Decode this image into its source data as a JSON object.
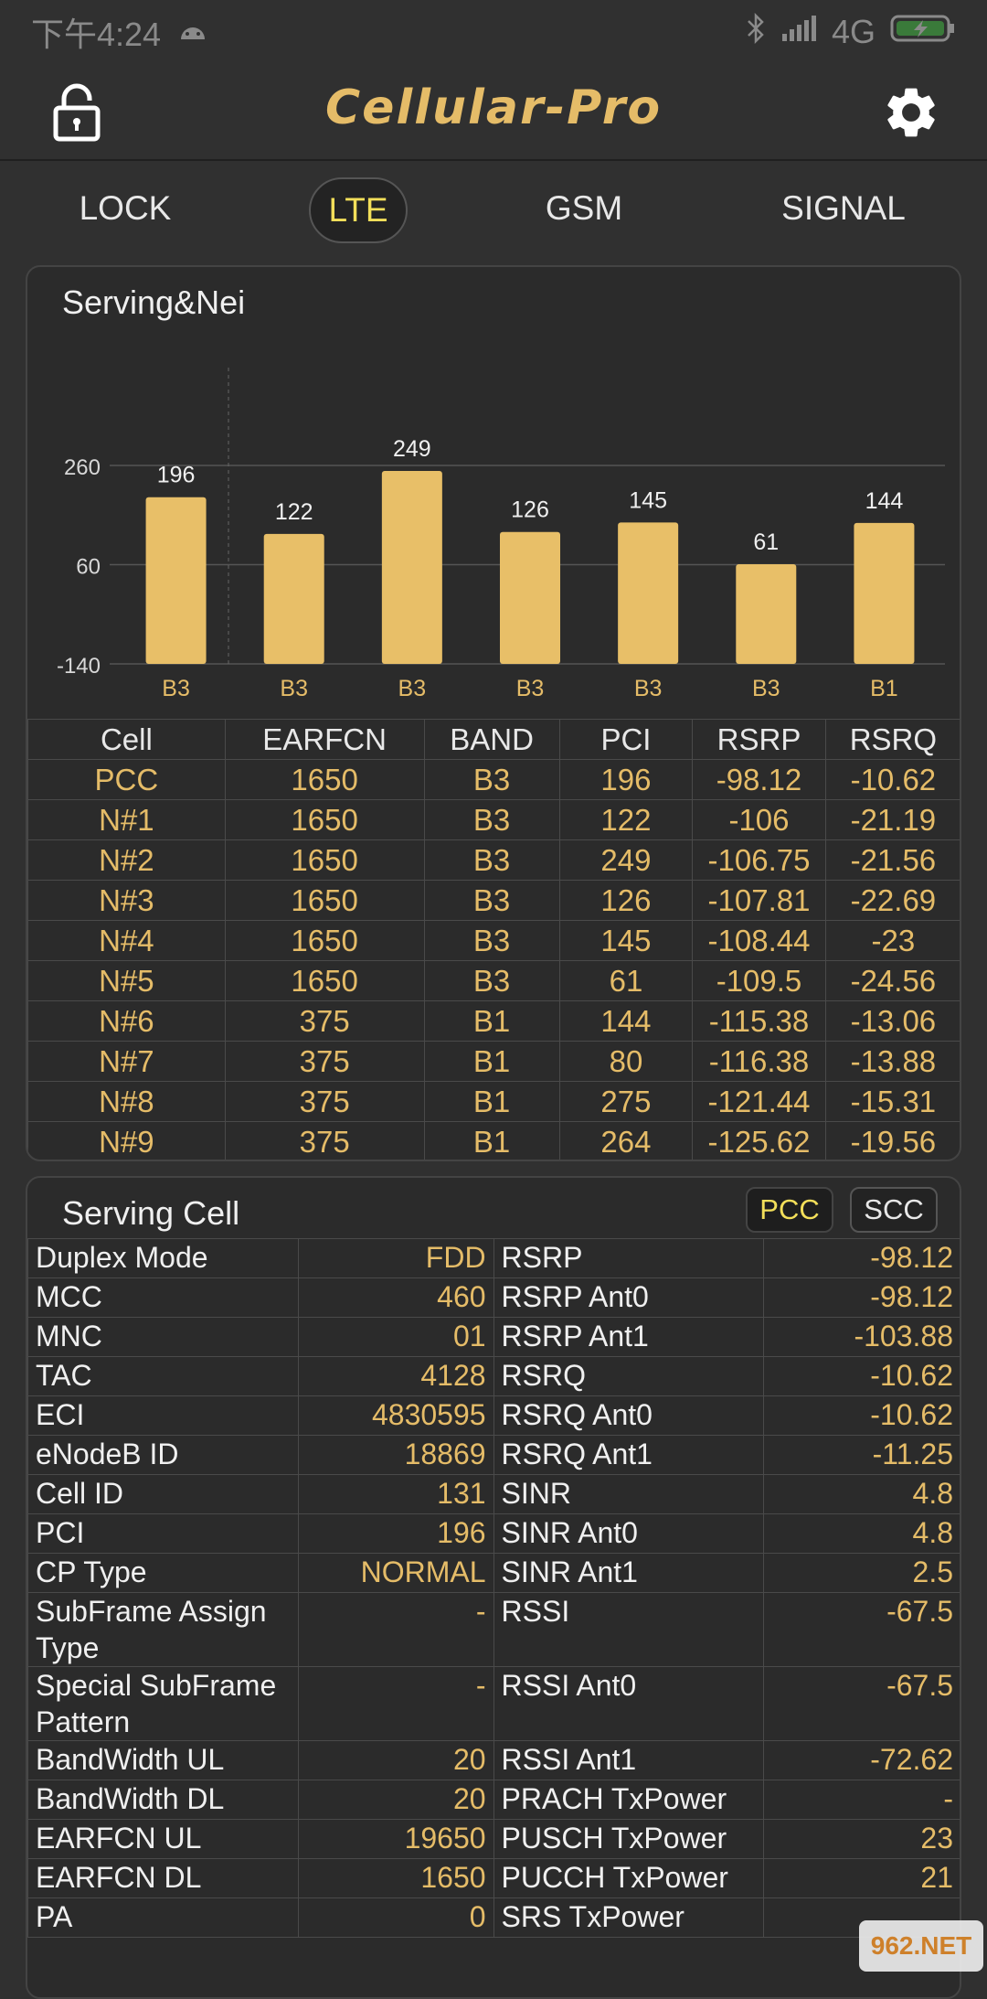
{
  "status_bar": {
    "time": "下午4:24",
    "network": "4G"
  },
  "app": {
    "title": "Cellular-Pro"
  },
  "tabs": [
    {
      "label": "LOCK"
    },
    {
      "label": "LTE"
    },
    {
      "label": "GSM"
    },
    {
      "label": "SIGNAL"
    }
  ],
  "serving_nei": {
    "title": "Serving&Nei",
    "columns": [
      "Cell",
      "EARFCN",
      "BAND",
      "PCI",
      "RSRP",
      "RSRQ"
    ],
    "rows": [
      [
        "PCC",
        "1650",
        "B3",
        "196",
        "-98.12",
        "-10.62"
      ],
      [
        "N#1",
        "1650",
        "B3",
        "122",
        "-106",
        "-21.19"
      ],
      [
        "N#2",
        "1650",
        "B3",
        "249",
        "-106.75",
        "-21.56"
      ],
      [
        "N#3",
        "1650",
        "B3",
        "126",
        "-107.81",
        "-22.69"
      ],
      [
        "N#4",
        "1650",
        "B3",
        "145",
        "-108.44",
        "-23"
      ],
      [
        "N#5",
        "1650",
        "B3",
        "61",
        "-109.5",
        "-24.56"
      ],
      [
        "N#6",
        "375",
        "B1",
        "144",
        "-115.38",
        "-13.06"
      ],
      [
        "N#7",
        "375",
        "B1",
        "80",
        "-116.38",
        "-13.88"
      ],
      [
        "N#8",
        "375",
        "B1",
        "275",
        "-121.44",
        "-15.31"
      ],
      [
        "N#9",
        "375",
        "B1",
        "264",
        "-125.62",
        "-19.56"
      ]
    ]
  },
  "chart_data": {
    "type": "bar",
    "categories": [
      "B3",
      "B3",
      "B3",
      "B3",
      "B3",
      "B3",
      "B1"
    ],
    "values": [
      196,
      122,
      249,
      126,
      145,
      61,
      144
    ],
    "ytick_labels": [
      "260",
      "60",
      "-140"
    ],
    "ylim": [
      -140,
      260
    ],
    "title": "",
    "xlabel": "",
    "ylabel": "",
    "grid": true,
    "bar_color": "#e8bf68"
  },
  "serving_cell": {
    "title": "Serving Cell",
    "pcc_label": "PCC",
    "scc_label": "SCC",
    "rows": [
      {
        "k1": "Duplex Mode",
        "v1": "FDD",
        "k2": "RSRP",
        "v2": "-98.12"
      },
      {
        "k1": "MCC",
        "v1": "460",
        "k2": "RSRP Ant0",
        "v2": "-98.12"
      },
      {
        "k1": "MNC",
        "v1": "01",
        "k2": "RSRP Ant1",
        "v2": "-103.88"
      },
      {
        "k1": "TAC",
        "v1": "4128",
        "k2": "RSRQ",
        "v2": "-10.62"
      },
      {
        "k1": "ECI",
        "v1": "4830595",
        "k2": "RSRQ Ant0",
        "v2": "-10.62"
      },
      {
        "k1": "eNodeB ID",
        "v1": "18869",
        "k2": "RSRQ Ant1",
        "v2": "-11.25"
      },
      {
        "k1": "Cell ID",
        "v1": "131",
        "k2": "SINR",
        "v2": "4.8"
      },
      {
        "k1": "PCI",
        "v1": "196",
        "k2": "SINR Ant0",
        "v2": "4.8"
      },
      {
        "k1": "CP Type",
        "v1": "NORMAL",
        "k2": "SINR Ant1",
        "v2": "2.5"
      },
      {
        "k1": "SubFrame Assign Type",
        "v1": "-",
        "k2": "RSSI",
        "v2": "-67.5"
      },
      {
        "k1": "Special SubFrame Pattern",
        "v1": "-",
        "k2": "RSSI Ant0",
        "v2": "-67.5"
      },
      {
        "k1": "BandWidth UL",
        "v1": "20",
        "k2": "RSSI Ant1",
        "v2": "-72.62"
      },
      {
        "k1": "BandWidth DL",
        "v1": "20",
        "k2": "PRACH TxPower",
        "v2": "-"
      },
      {
        "k1": "EARFCN UL",
        "v1": "19650",
        "k2": "PUSCH TxPower",
        "v2": "23"
      },
      {
        "k1": "EARFCN DL",
        "v1": "1650",
        "k2": "PUCCH TxPower",
        "v2": "21"
      },
      {
        "k1": "PA",
        "v1": "0",
        "k2": "SRS TxPower",
        "v2": ""
      }
    ]
  },
  "watermark": "962.NET"
}
